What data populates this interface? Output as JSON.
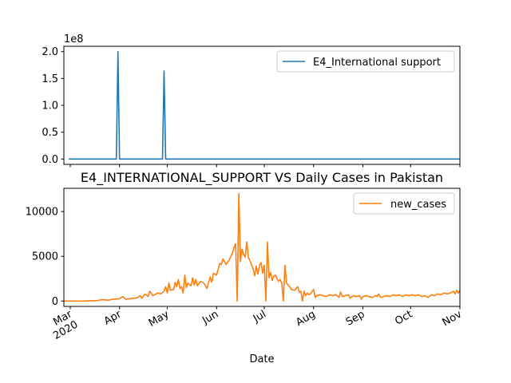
{
  "chart_data": [
    {
      "type": "line",
      "scale_label": "1e8",
      "ylim": [
        -0.1,
        2.1
      ],
      "yticks": [
        0.0,
        0.5,
        1.0,
        1.5,
        2.0
      ],
      "ytick_labels": [
        "0.0",
        "0.5",
        "1.0",
        "1.5",
        "2.0"
      ],
      "legend_position": "upper-right",
      "grid": false,
      "series": [
        {
          "name": "E4_International support",
          "color": "#1f77b4",
          "points": [
            [
              "2020-02-29",
              0
            ],
            [
              "2020-03-30",
              0
            ],
            [
              "2020-03-31",
              2.0
            ],
            [
              "2020-04-01",
              0
            ],
            [
              "2020-04-28",
              0
            ],
            [
              "2020-04-29",
              1.64
            ],
            [
              "2020-04-30",
              0
            ],
            [
              "2020-11-01",
              0
            ]
          ]
        }
      ]
    },
    {
      "type": "line",
      "title": "E4_INTERNATIONAL_SUPPORT VS Daily Cases in Pakistan",
      "xlabel": "Date",
      "xlim": [
        "2020-02-26",
        "2020-11-01"
      ],
      "ylim": [
        -600,
        12600
      ],
      "yticks": [
        0,
        5000,
        10000
      ],
      "ytick_labels": [
        "0",
        "5000",
        "10000"
      ],
      "xticks": [
        "2020-03-01",
        "2020-04-01",
        "2020-05-01",
        "2020-06-01",
        "2020-07-01",
        "2020-08-01",
        "2020-09-01",
        "2020-10-01",
        "2020-11-01"
      ],
      "xtick_labels": [
        "Mar\n2020",
        "Apr",
        "May",
        "Jun",
        "Jul",
        "Aug",
        "Sep",
        "Oct",
        "Nov"
      ],
      "legend_position": "upper-right",
      "grid": false,
      "series": [
        {
          "name": "new_cases",
          "color": "#ff7f0e",
          "points": [
            [
              "2020-02-26",
              0
            ],
            [
              "2020-03-10",
              10
            ],
            [
              "2020-03-18",
              50
            ],
            [
              "2020-03-21",
              150
            ],
            [
              "2020-03-25",
              100
            ],
            [
              "2020-03-28",
              200
            ],
            [
              "2020-04-01",
              250
            ],
            [
              "2020-04-03",
              500
            ],
            [
              "2020-04-05",
              200
            ],
            [
              "2020-04-09",
              300
            ],
            [
              "2020-04-12",
              350
            ],
            [
              "2020-04-14",
              600
            ],
            [
              "2020-04-15",
              300
            ],
            [
              "2020-04-17",
              800
            ],
            [
              "2020-04-19",
              500
            ],
            [
              "2020-04-20",
              1100
            ],
            [
              "2020-04-22",
              600
            ],
            [
              "2020-04-25",
              900
            ],
            [
              "2020-04-27",
              800
            ],
            [
              "2020-04-29",
              1100
            ],
            [
              "2020-04-30",
              1600
            ],
            [
              "2020-05-01",
              900
            ],
            [
              "2020-05-02",
              2000
            ],
            [
              "2020-05-03",
              1200
            ],
            [
              "2020-05-05",
              1300
            ],
            [
              "2020-05-06",
              2100
            ],
            [
              "2020-05-07",
              1600
            ],
            [
              "2020-05-08",
              2400
            ],
            [
              "2020-05-09",
              1400
            ],
            [
              "2020-05-10",
              1600
            ],
            [
              "2020-05-11",
              900
            ],
            [
              "2020-05-12",
              2900
            ],
            [
              "2020-05-13",
              1500
            ],
            [
              "2020-05-14",
              2000
            ],
            [
              "2020-05-16",
              1700
            ],
            [
              "2020-05-17",
              2600
            ],
            [
              "2020-05-18",
              1800
            ],
            [
              "2020-05-19",
              2400
            ],
            [
              "2020-05-20",
              1700
            ],
            [
              "2020-05-22",
              2200
            ],
            [
              "2020-05-24",
              2000
            ],
            [
              "2020-05-26",
              1400
            ],
            [
              "2020-05-28",
              2700
            ],
            [
              "2020-05-29",
              2100
            ],
            [
              "2020-05-30",
              3100
            ],
            [
              "2020-06-01",
              2900
            ],
            [
              "2020-06-03",
              4200
            ],
            [
              "2020-06-04",
              4100
            ],
            [
              "2020-06-05",
              4700
            ],
            [
              "2020-06-07",
              4100
            ],
            [
              "2020-06-09",
              4600
            ],
            [
              "2020-06-11",
              5400
            ],
            [
              "2020-06-12",
              6000
            ],
            [
              "2020-06-13",
              6400
            ],
            [
              "2020-06-14",
              0
            ],
            [
              "2020-06-15",
              12000
            ],
            [
              "2020-06-16",
              4400
            ],
            [
              "2020-06-17",
              5800
            ],
            [
              "2020-06-18",
              5200
            ],
            [
              "2020-06-19",
              4900
            ],
            [
              "2020-06-20",
              6600
            ],
            [
              "2020-06-21",
              4900
            ],
            [
              "2020-06-22",
              4500
            ],
            [
              "2020-06-24",
              3600
            ],
            [
              "2020-06-25",
              2800
            ],
            [
              "2020-06-26",
              3900
            ],
            [
              "2020-06-27",
              3000
            ],
            [
              "2020-06-28",
              4000
            ],
            [
              "2020-06-29",
              4300
            ],
            [
              "2020-06-30",
              3100
            ],
            [
              "2020-07-01",
              4000
            ],
            [
              "2020-07-02",
              0
            ],
            [
              "2020-07-03",
              6600
            ],
            [
              "2020-07-04",
              2600
            ],
            [
              "2020-07-05",
              3200
            ],
            [
              "2020-07-06",
              2300
            ],
            [
              "2020-07-07",
              2800
            ],
            [
              "2020-07-08",
              2900
            ],
            [
              "2020-07-09",
              2500
            ],
            [
              "2020-07-10",
              2200
            ],
            [
              "2020-07-11",
              2400
            ],
            [
              "2020-07-12",
              2000
            ],
            [
              "2020-07-13",
              0
            ],
            [
              "2020-07-14",
              4000
            ],
            [
              "2020-07-15",
              2000
            ],
            [
              "2020-07-17",
              1600
            ],
            [
              "2020-07-18",
              1300
            ],
            [
              "2020-07-20",
              1200
            ],
            [
              "2020-07-22",
              1600
            ],
            [
              "2020-07-23",
              1000
            ],
            [
              "2020-07-24",
              1100
            ],
            [
              "2020-07-25",
              0
            ],
            [
              "2020-07-26",
              1100
            ],
            [
              "2020-07-27",
              600
            ],
            [
              "2020-07-28",
              900
            ],
            [
              "2020-07-29",
              700
            ],
            [
              "2020-07-30",
              800
            ],
            [
              "2020-08-01",
              1300
            ],
            [
              "2020-08-02",
              400
            ],
            [
              "2020-08-03",
              600
            ],
            [
              "2020-08-05",
              700
            ],
            [
              "2020-08-07",
              600
            ],
            [
              "2020-08-09",
              500
            ],
            [
              "2020-08-11",
              700
            ],
            [
              "2020-08-13",
              600
            ],
            [
              "2020-08-15",
              700
            ],
            [
              "2020-08-17",
              400
            ],
            [
              "2020-08-18",
              1000
            ],
            [
              "2020-08-19",
              500
            ],
            [
              "2020-08-21",
              600
            ],
            [
              "2020-08-23",
              700
            ],
            [
              "2020-08-24",
              300
            ],
            [
              "2020-08-26",
              600
            ],
            [
              "2020-08-28",
              500
            ],
            [
              "2020-08-30",
              600
            ],
            [
              "2020-08-31",
              200
            ],
            [
              "2020-09-01",
              500
            ],
            [
              "2020-09-03",
              600
            ],
            [
              "2020-09-05",
              500
            ],
            [
              "2020-09-07",
              400
            ],
            [
              "2020-09-09",
              600
            ],
            [
              "2020-09-10",
              500
            ],
            [
              "2020-09-11",
              800
            ],
            [
              "2020-09-12",
              400
            ],
            [
              "2020-09-14",
              500
            ],
            [
              "2020-09-16",
              600
            ],
            [
              "2020-09-18",
              500
            ],
            [
              "2020-09-20",
              700
            ],
            [
              "2020-09-22",
              600
            ],
            [
              "2020-09-24",
              700
            ],
            [
              "2020-09-26",
              500
            ],
            [
              "2020-09-28",
              700
            ],
            [
              "2020-09-30",
              600
            ],
            [
              "2020-10-02",
              700
            ],
            [
              "2020-10-04",
              600
            ],
            [
              "2020-10-06",
              700
            ],
            [
              "2020-10-08",
              500
            ],
            [
              "2020-10-10",
              600
            ],
            [
              "2020-10-12",
              400
            ],
            [
              "2020-10-14",
              700
            ],
            [
              "2020-10-16",
              600
            ],
            [
              "2020-10-18",
              800
            ],
            [
              "2020-10-20",
              700
            ],
            [
              "2020-10-22",
              900
            ],
            [
              "2020-10-24",
              800
            ],
            [
              "2020-10-26",
              900
            ],
            [
              "2020-10-28",
              1100
            ],
            [
              "2020-10-29",
              800
            ],
            [
              "2020-10-30",
              1200
            ],
            [
              "2020-10-31",
              900
            ],
            [
              "2020-11-01",
              1200
            ]
          ]
        }
      ]
    }
  ]
}
